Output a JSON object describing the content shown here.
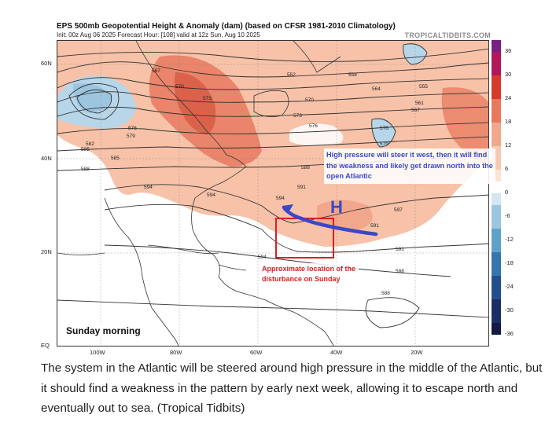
{
  "figure": {
    "title": "EPS 500mb Geopotential Height & Anomaly (dam) (based on CFSR 1981-2010 Climatology)",
    "subtitle": "Init: 00z Aug 06 2025   Forecast Hour: [108]   valid at 12z Sun, Aug 10 2025",
    "credit": "TROPICALTIDBITS.COM",
    "lat_labels": [
      "60N",
      "40N",
      "20N",
      "EQ"
    ],
    "lon_labels": [
      "100W",
      "80W",
      "60W",
      "40W",
      "20W"
    ],
    "colorbar_ticks": [
      "36",
      "30",
      "24",
      "18",
      "12",
      "6",
      "0",
      "-6",
      "-12",
      "-18",
      "-24",
      "-30",
      "-36"
    ],
    "contour_labels": [
      "567",
      "570",
      "573",
      "552",
      "558",
      "564",
      "555",
      "561",
      "567",
      "570",
      "573",
      "576",
      "576",
      "579",
      "576",
      "579",
      "582",
      "585",
      "585",
      "588",
      "588",
      "591",
      "591",
      "594",
      "594",
      "594",
      "597",
      "591",
      "594",
      "591",
      "588",
      "588"
    ],
    "annotations": {
      "steer_text": "High pressure will steer it west, then it will find the weakness and likely get drawn north into the open Atlantic",
      "high_label": "H",
      "location_text": "Approximate location of the disturbance on Sunday",
      "time_label": "Sunday morning"
    },
    "colors": {
      "positive_anomaly": "#f7c2a8",
      "strong_positive": "#e8795f",
      "negative_anomaly": "#b7d6ea",
      "annotation_blue": "#3b47c9",
      "annotation_red": "#d62222"
    }
  },
  "caption": "The system in the Atlantic will be steered around high pressure in the middle of the Atlantic, but it should find a weakness in the pattern by early next week, allowing it to escape north and eventually out to sea. (Tropical Tidbits)"
}
